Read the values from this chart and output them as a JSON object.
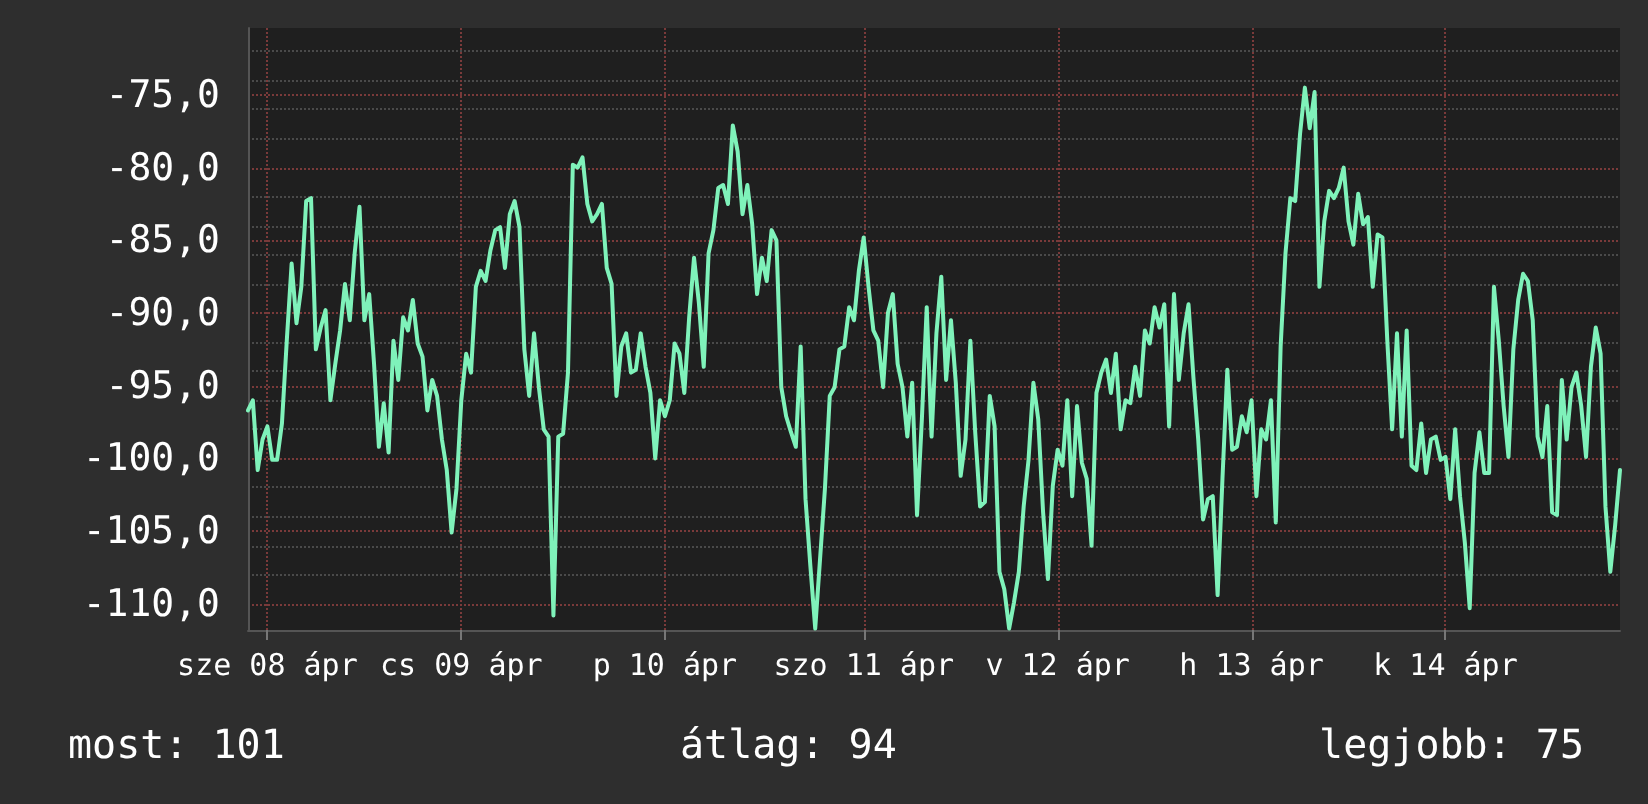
{
  "chart_data": {
    "type": "line",
    "categories": [
      null,
      null,
      null,
      null,
      "sze 08 ápr",
      null,
      null,
      null,
      null,
      null,
      null,
      null,
      null,
      null,
      null,
      null,
      null,
      null,
      null,
      null,
      null,
      null,
      null,
      null,
      null,
      null,
      null,
      null,
      null,
      null,
      null,
      null,
      null,
      null,
      null,
      null,
      null,
      null,
      null,
      null,
      null,
      null,
      null,
      null,
      "cs 09 ápr",
      null,
      null,
      null,
      null,
      null,
      null,
      null,
      null,
      null,
      null,
      null,
      null,
      null,
      null,
      null,
      null,
      null,
      null,
      null,
      null,
      null,
      null,
      null,
      null,
      null,
      null,
      null,
      null,
      null,
      null,
      null,
      null,
      null,
      null,
      null,
      null,
      null,
      null,
      null,
      null,
      null,
      "p 10 ápr",
      null,
      null,
      null,
      null,
      null,
      null,
      null,
      null,
      null,
      null,
      null,
      null,
      null,
      null,
      null,
      null,
      null,
      null,
      null,
      null,
      null,
      null,
      null,
      null,
      null,
      null,
      null,
      null,
      null,
      null,
      null,
      null,
      null,
      null,
      null,
      null,
      null,
      null,
      null,
      null,
      "szo 11 ápr",
      null,
      null,
      null,
      null,
      null,
      null,
      null,
      null,
      null,
      null,
      null,
      null,
      null,
      null,
      null,
      null,
      null,
      null,
      null,
      null,
      null,
      null,
      null,
      null,
      null,
      null,
      null,
      null,
      null,
      null,
      null,
      null,
      null,
      null,
      null,
      null,
      null,
      null,
      null,
      "v 12 ápr",
      null,
      null,
      null,
      null,
      null,
      null,
      null,
      null,
      null,
      null,
      null,
      null,
      null,
      null,
      null,
      null,
      null,
      null,
      null,
      null,
      null,
      null,
      null,
      null,
      null,
      null,
      null,
      null,
      null,
      null,
      null,
      null,
      null,
      null,
      null,
      null,
      null,
      null,
      null,
      "h 13 ápr",
      null,
      null,
      null,
      null,
      null,
      null,
      null,
      null,
      null,
      null,
      null,
      null,
      null,
      null,
      null,
      null,
      null,
      null,
      null,
      null,
      null,
      null,
      null,
      null,
      null,
      null,
      null,
      null,
      null,
      null,
      null,
      null,
      null,
      null,
      null,
      null,
      null,
      null,
      null,
      "k 14 ápr",
      null,
      null,
      null,
      null,
      null,
      null,
      null,
      null,
      null,
      null,
      null,
      null,
      null,
      null,
      null,
      null,
      null,
      null,
      null,
      null,
      null,
      null,
      null,
      null,
      null,
      null,
      null,
      null,
      null,
      null,
      null,
      null,
      null,
      null,
      null,
      null
    ],
    "series": [
      {
        "color": "#7ff2ba",
        "values": [
          -96.7,
          -96.0,
          -100.8,
          -98.7,
          -97.8,
          -100.1,
          -100.1,
          -97.6,
          -91.9,
          -86.6,
          -90.7,
          -88.2,
          -82.3,
          -82.1,
          -92.5,
          -91.0,
          -89.8,
          -96.0,
          -93.5,
          -91.2,
          -88.0,
          -90.5,
          -85.9,
          -82.7,
          -90.5,
          -88.7,
          -93.5,
          -99.2,
          -96.2,
          -99.6,
          -91.9,
          -94.6,
          -90.3,
          -91.2,
          -89.1,
          -92.1,
          -93.0,
          -96.7,
          -94.6,
          -95.7,
          -98.7,
          -100.8,
          -105.1,
          -102.1,
          -96.0,
          -92.8,
          -94.1,
          -88.2,
          -87.1,
          -87.8,
          -85.7,
          -84.3,
          -84.1,
          -86.9,
          -83.2,
          -82.3,
          -84.1,
          -92.5,
          -95.7,
          -91.4,
          -95.1,
          -98.0,
          -98.5,
          -110.8,
          -98.5,
          -98.3,
          -94.1,
          -79.8,
          -80.0,
          -79.3,
          -82.5,
          -83.7,
          -83.2,
          -82.5,
          -86.9,
          -88.0,
          -95.7,
          -92.3,
          -91.4,
          -94.1,
          -93.9,
          -91.4,
          -93.7,
          -95.5,
          -100.0,
          -96.0,
          -97.1,
          -96.0,
          -92.1,
          -92.8,
          -95.5,
          -90.3,
          -86.2,
          -89.3,
          -93.7,
          -85.9,
          -84.3,
          -81.4,
          -81.2,
          -82.5,
          -77.1,
          -78.9,
          -83.2,
          -81.2,
          -83.9,
          -88.7,
          -86.2,
          -87.8,
          -84.3,
          -85.0,
          -95.1,
          -97.1,
          -98.2,
          -99.2,
          -92.3,
          -102.8,
          -107.4,
          -111.7,
          -106.9,
          -102.1,
          -95.7,
          -95.1,
          -92.5,
          -92.3,
          -89.6,
          -90.5,
          -87.1,
          -84.8,
          -88.2,
          -91.2,
          -91.9,
          -95.1,
          -90.0,
          -88.7,
          -93.5,
          -95.1,
          -98.5,
          -94.8,
          -103.9,
          -97.3,
          -89.6,
          -98.5,
          -91.4,
          -87.5,
          -94.6,
          -90.5,
          -94.8,
          -101.2,
          -98.7,
          -91.9,
          -98.2,
          -103.3,
          -103.0,
          -95.7,
          -97.8,
          -107.8,
          -109.0,
          -111.7,
          -109.9,
          -107.8,
          -103.3,
          -100.1,
          -94.8,
          -97.3,
          -103.7,
          -108.3,
          -101.9,
          -99.4,
          -100.5,
          -96.0,
          -102.6,
          -96.4,
          -100.3,
          -101.4,
          -106.0,
          -95.5,
          -94.1,
          -93.2,
          -95.5,
          -92.8,
          -98.0,
          -96.0,
          -96.2,
          -93.7,
          -95.7,
          -91.2,
          -92.1,
          -89.6,
          -91.0,
          -89.4,
          -97.8,
          -88.7,
          -94.6,
          -91.4,
          -89.4,
          -94.4,
          -98.7,
          -104.2,
          -102.8,
          -102.6,
          -109.4,
          -101.4,
          -93.9,
          -99.4,
          -99.2,
          -97.1,
          -98.2,
          -96.0,
          -102.6,
          -98.0,
          -98.7,
          -96.0,
          -104.4,
          -92.3,
          -85.9,
          -82.1,
          -82.3,
          -77.7,
          -74.5,
          -77.3,
          -74.8,
          -88.2,
          -83.7,
          -81.6,
          -82.1,
          -81.4,
          -80.0,
          -83.7,
          -85.3,
          -81.8,
          -83.9,
          -83.4,
          -88.2,
          -84.6,
          -84.8,
          -91.9,
          -98.0,
          -91.4,
          -98.5,
          -91.2,
          -100.5,
          -100.8,
          -97.6,
          -101.0,
          -98.7,
          -98.5,
          -100.1,
          -99.9,
          -102.8,
          -98.0,
          -102.6,
          -105.8,
          -110.3,
          -101.0,
          -98.2,
          -101.0,
          -101.0,
          -88.2,
          -91.9,
          -96.4,
          -99.9,
          -92.5,
          -89.1,
          -87.3,
          -87.8,
          -90.5,
          -98.5,
          -99.9,
          -96.4,
          -103.7,
          -103.9,
          -94.6,
          -98.7,
          -95.1,
          -94.1,
          -96.4,
          -99.9,
          -93.7,
          -91.0,
          -92.8,
          -103.3,
          -107.8,
          -104.6,
          -100.8
        ]
      }
    ],
    "ylim": [
      -111.8,
      -70.4
    ],
    "yticks": [
      {
        "value": -110,
        "label": "-110,0"
      },
      {
        "value": -105,
        "label": "-105,0"
      },
      {
        "value": -100,
        "label": "-100,0"
      },
      {
        "value": -95,
        "label": "-95,0"
      },
      {
        "value": -90,
        "label": "-90,0"
      },
      {
        "value": -85,
        "label": "-85,0"
      },
      {
        "value": -80,
        "label": "-80,0"
      },
      {
        "value": -75,
        "label": "-75,0"
      }
    ],
    "grid": true,
    "marker": "none",
    "line_style": "solid",
    "annotations": [
      "most: 101",
      "átlag: 94",
      "legjobb: 75"
    ]
  }
}
